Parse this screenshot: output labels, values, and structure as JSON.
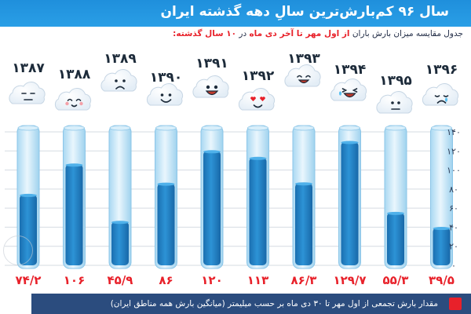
{
  "header": {
    "title": "سال ۹۶ کم‌بارش‌ترین سالِ دهه گذشته ایران"
  },
  "subtitle": {
    "part1": "جدول مقایسه میزان بارش باران",
    "part2": "از اول مهر تا آخر دی ماه",
    "part3": "در",
    "part4": "۱۰ سال گذشته:"
  },
  "legend": {
    "text": "مقدار بارش تجمعی از اول مهر تا ۳۰ دی ماه بر حسب میلیمتر (میانگین بارش همه مناطق ایران)",
    "color": "#e8212a"
  },
  "colors": {
    "header": "#1f8fdc",
    "fill": "#1f7fc4",
    "tube": "#bfe3f7",
    "value_text": "#e8212a",
    "footer": "#2b4c7e"
  },
  "chart_data": {
    "type": "bar",
    "categories": [
      "۱۳۸۷",
      "۱۳۸۸",
      "۱۳۸۹",
      "۱۳۹۰",
      "۱۳۹۱",
      "۱۳۹۲",
      "۱۳۹۳",
      "۱۳۹۴",
      "۱۳۹۵",
      "۱۳۹۶"
    ],
    "values": [
      74.2,
      106,
      45.9,
      86,
      120,
      113,
      86.3,
      129.7,
      55.3,
      39.5
    ],
    "value_labels": [
      "۷۴/۲",
      "۱۰۶",
      "۴۵/۹",
      "۸۶",
      "۱۲۰",
      "۱۱۳",
      "۸۶/۳",
      "۱۲۹/۷",
      "۵۵/۳",
      "۳۹/۵"
    ],
    "ylim": [
      0,
      140
    ],
    "yticks": [
      0,
      20,
      40,
      60,
      80,
      100,
      120,
      140
    ],
    "ytick_labels": [
      "۰",
      "۲۰",
      "۴۰",
      "۶۰",
      "۸۰",
      "۱۰۰",
      "۱۲۰",
      "۱۴۰"
    ],
    "grid": true,
    "faces": [
      "neutral",
      "blush",
      "sad",
      "smile",
      "grin",
      "love",
      "happy",
      "laugh",
      "flat",
      "cry"
    ]
  }
}
